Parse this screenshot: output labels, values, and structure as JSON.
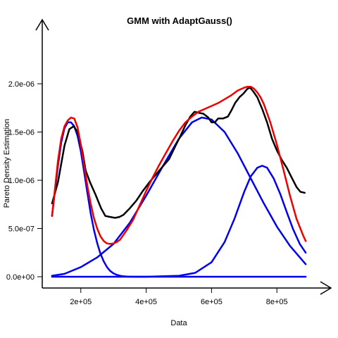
{
  "chart_data": {
    "type": "line",
    "title": "GMM with AdaptGauss()",
    "xlabel": "Data",
    "ylabel": "Pareto Density Estimation",
    "xlim": [
      110000,
      890000
    ],
    "ylim": [
      0,
      2e-06
    ],
    "x_ticks": [
      {
        "value": 200000,
        "label": "2e+05"
      },
      {
        "value": 400000,
        "label": "4e+05"
      },
      {
        "value": 600000,
        "label": "6e+05"
      },
      {
        "value": 800000,
        "label": "8e+05"
      }
    ],
    "y_ticks": [
      {
        "value": 0,
        "label": "0.0e+00"
      },
      {
        "value": 5e-07,
        "label": "5.0e-07"
      },
      {
        "value": 1e-06,
        "label": "1.0e-06"
      },
      {
        "value": 1.5e-06,
        "label": "1.5e-06"
      },
      {
        "value": 2e-06,
        "label": "2.0e-06"
      }
    ],
    "grid": false,
    "legend": "none",
    "series": [
      {
        "role": "empirical-pde",
        "color": "#000000",
        "x": [
          112000,
          130000,
          150000,
          165000,
          178000,
          190000,
          205000,
          215000,
          228000,
          245000,
          262000,
          275000,
          290000,
          305000,
          318000,
          330000,
          350000,
          370000,
          390000,
          410000,
          430000,
          450000,
          470000,
          490000,
          505000,
          520000,
          535000,
          548000,
          560000,
          575000,
          590000,
          600000,
          610000,
          620000,
          635000,
          650000,
          660000,
          672000,
          685000,
          698000,
          710000,
          718000,
          728000,
          740000,
          755000,
          770000,
          785000,
          800000,
          815000,
          830000,
          845000,
          860000,
          872000,
          885000
        ],
        "y": [
          7.6e-07,
          9.8e-07,
          1.36e-06,
          1.53e-06,
          1.56e-06,
          1.5e-06,
          1.3e-06,
          1.1e-06,
          9.8e-07,
          8.5e-07,
          7.1e-07,
          6.3e-07,
          6.2e-07,
          6.1e-07,
          6.2e-07,
          6.4e-07,
          7.1e-07,
          7.9e-07,
          8.9e-07,
          9.8e-07,
          1.06e-06,
          1.14e-06,
          1.22e-06,
          1.36e-06,
          1.46e-06,
          1.57e-06,
          1.66e-06,
          1.71e-06,
          1.7e-06,
          1.69e-06,
          1.65e-06,
          1.6e-06,
          1.6e-06,
          1.64e-06,
          1.64e-06,
          1.66e-06,
          1.72e-06,
          1.8e-06,
          1.86e-06,
          1.9e-06,
          1.95e-06,
          1.96e-06,
          1.92e-06,
          1.86e-06,
          1.74e-06,
          1.6e-06,
          1.43e-06,
          1.31e-06,
          1.21e-06,
          1.13e-06,
          1.03e-06,
          9.3e-07,
          8.8e-07,
          8.7e-07
        ]
      },
      {
        "role": "mixture-model",
        "color": "#ee0000",
        "x": [
          112000,
          120000,
          130000,
          140000,
          150000,
          160000,
          170000,
          180000,
          190000,
          200000,
          210000,
          220000,
          230000,
          240000,
          250000,
          260000,
          270000,
          280000,
          290000,
          300000,
          310000,
          320000,
          340000,
          360000,
          380000,
          400000,
          420000,
          440000,
          460000,
          480000,
          500000,
          520000,
          540000,
          560000,
          580000,
          600000,
          620000,
          640000,
          660000,
          680000,
          700000,
          710000,
          720000,
          730000,
          740000,
          750000,
          760000,
          780000,
          800000,
          820000,
          840000,
          860000,
          880000,
          888000
        ],
        "y": [
          6.3e-07,
          8.8e-07,
          1.2e-06,
          1.43e-06,
          1.56e-06,
          1.62e-06,
          1.65e-06,
          1.64e-06,
          1.55e-06,
          1.37e-06,
          1.16e-06,
          9.4e-07,
          7.6e-07,
          6.1e-07,
          5e-07,
          4.2e-07,
          3.7e-07,
          3.45e-07,
          3.4e-07,
          3.45e-07,
          3.6e-07,
          3.85e-07,
          4.8e-07,
          5.9e-07,
          7.4e-07,
          8.9e-07,
          1.03e-06,
          1.16e-06,
          1.28e-06,
          1.4e-06,
          1.51e-06,
          1.6e-06,
          1.66e-06,
          1.71e-06,
          1.74e-06,
          1.77e-06,
          1.8e-06,
          1.84e-06,
          1.88e-06,
          1.93e-06,
          1.96e-06,
          1.97e-06,
          1.97e-06,
          1.95e-06,
          1.91e-06,
          1.86e-06,
          1.79e-06,
          1.6e-06,
          1.37e-06,
          1.11e-06,
          8.4e-07,
          6e-07,
          4.3e-07,
          3.7e-07
        ]
      },
      {
        "role": "component",
        "color": "#0000ee",
        "x": [
          112000,
          120000,
          130000,
          140000,
          150000,
          160000,
          170000,
          180000,
          190000,
          200000,
          210000,
          220000,
          230000,
          240000,
          250000,
          260000,
          270000,
          280000,
          290000,
          300000,
          310000,
          320000,
          330000,
          340000,
          360000,
          380000,
          400000,
          888000
        ],
        "y": [
          6.3e-07,
          8.6e-07,
          1.15e-06,
          1.39e-06,
          1.54e-06,
          1.6e-06,
          1.6e-06,
          1.56e-06,
          1.46e-06,
          1.3e-06,
          1.09e-06,
          8.7e-07,
          6.6e-07,
          4.9e-07,
          3.5e-07,
          2.4e-07,
          1.6e-07,
          1e-07,
          6e-08,
          3.5e-08,
          2e-08,
          1e-08,
          5e-09,
          2e-09,
          0,
          0,
          0,
          0
        ]
      },
      {
        "role": "component",
        "color": "#0000ee",
        "x": [
          112000,
          150000,
          200000,
          250000,
          300000,
          350000,
          400000,
          450000,
          500000,
          540000,
          570000,
          600000,
          640000,
          680000,
          720000,
          760000,
          800000,
          840000,
          888000
        ],
        "y": [
          1e-08,
          3e-08,
          1e-07,
          2e-07,
          3.4e-07,
          5.6e-07,
          8.4e-07,
          1.14e-06,
          1.43e-06,
          1.6e-06,
          1.65e-06,
          1.63e-06,
          1.5e-06,
          1.28e-06,
          1.02e-06,
          7.6e-07,
          5.2e-07,
          3.2e-07,
          1.3e-07
        ]
      },
      {
        "role": "component",
        "color": "#0000ee",
        "x": [
          112000,
          400000,
          500000,
          550000,
          600000,
          640000,
          670000,
          700000,
          720000,
          740000,
          755000,
          770000,
          790000,
          810000,
          830000,
          850000,
          870000,
          888000
        ],
        "y": [
          0,
          0,
          1e-08,
          4e-08,
          1.5e-07,
          3.6e-07,
          6e-07,
          8.8e-07,
          1.04e-06,
          1.13e-06,
          1.15e-06,
          1.13e-06,
          1.02e-06,
          8.6e-07,
          6.7e-07,
          4.9e-07,
          3.4e-07,
          2.5e-07
        ]
      }
    ]
  }
}
